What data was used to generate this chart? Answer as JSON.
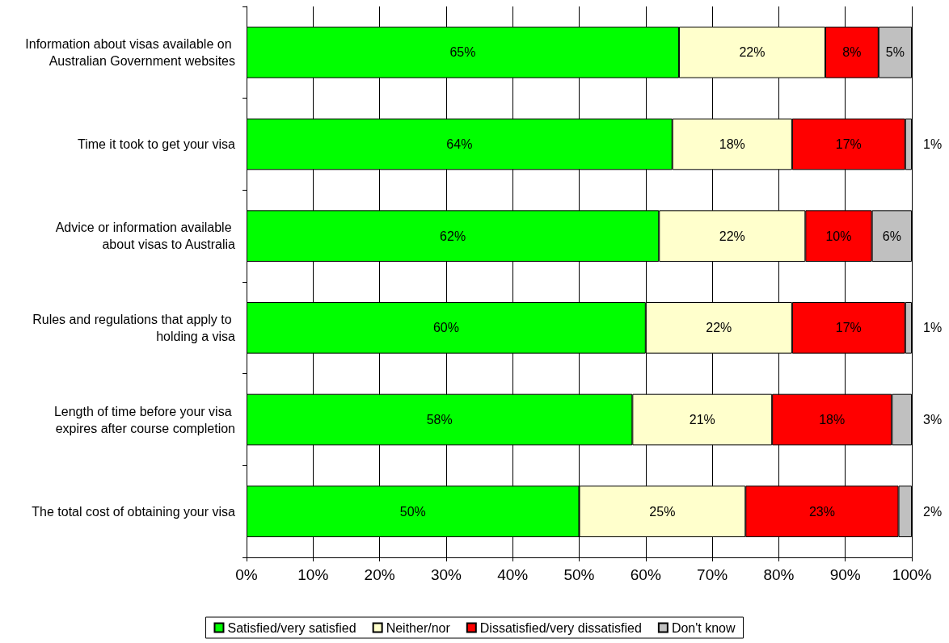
{
  "chart_data": {
    "type": "bar",
    "orientation": "horizontal",
    "stacked": true,
    "categories": [
      "Information about visas available on Australian Government websites",
      "Time it took to get your visa",
      "Advice or information available about visas to Australia",
      "Rules and regulations that apply to holding a visa",
      "Length of time before your visa expires after course completion",
      "The total cost of obtaining your visa"
    ],
    "series": [
      {
        "name": "Satisfied/very satisfied",
        "color": "#00ff00",
        "values": [
          65,
          64,
          62,
          60,
          58,
          50
        ],
        "value_labels": [
          "65%",
          "64%",
          "62%",
          "60%",
          "58%",
          "50%"
        ]
      },
      {
        "name": "Neither/nor",
        "color": "#ffffcc",
        "values": [
          22,
          18,
          22,
          22,
          21,
          25
        ],
        "value_labels": [
          "22%",
          "18%",
          "22%",
          "22%",
          "21%",
          "25%"
        ]
      },
      {
        "name": "Dissatisfied/very dissatisfied",
        "color": "#ff0000",
        "values": [
          8,
          17,
          10,
          17,
          18,
          23
        ],
        "value_labels": [
          "8%",
          "17%",
          "10%",
          "17%",
          "18%",
          "23%"
        ]
      },
      {
        "name": "Don't know",
        "color": "#c0c0c0",
        "values": [
          5,
          1,
          6,
          1,
          3,
          2
        ],
        "value_labels": [
          "5%",
          "1%",
          "6%",
          "1%",
          "3%",
          "2%"
        ]
      }
    ],
    "xlim": [
      0,
      100
    ],
    "xticks": [
      {
        "value": 0,
        "label": "0%"
      },
      {
        "value": 10,
        "label": "10%"
      },
      {
        "value": 20,
        "label": "20%"
      },
      {
        "value": 30,
        "label": "30%"
      },
      {
        "value": 40,
        "label": "40%"
      },
      {
        "value": 50,
        "label": "50%"
      },
      {
        "value": 60,
        "label": "60%"
      },
      {
        "value": 70,
        "label": "70%"
      },
      {
        "value": 80,
        "label": "80%"
      },
      {
        "value": 90,
        "label": "90%"
      },
      {
        "value": 100,
        "label": "100%"
      }
    ],
    "grid": "x",
    "legend": "bottom"
  }
}
